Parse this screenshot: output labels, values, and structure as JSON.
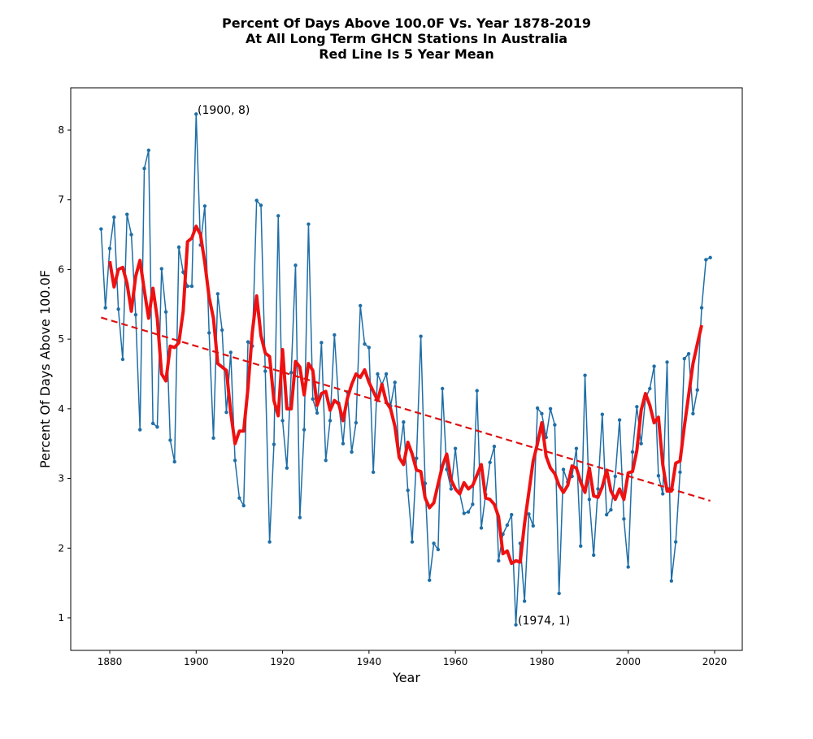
{
  "chart_data": {
    "type": "line",
    "title": [
      "Percent Of Days Above 100.0F Vs. Year 1878-2019",
      "At All Long Term GHCN Stations In Australia",
      "Red Line Is 5 Year Mean"
    ],
    "x_label": "Year",
    "y_label": "Percent Of Days Above 100.0F",
    "x": [
      1878,
      1879,
      1880,
      1881,
      1882,
      1883,
      1884,
      1885,
      1886,
      1887,
      1888,
      1889,
      1890,
      1891,
      1892,
      1893,
      1894,
      1895,
      1896,
      1897,
      1898,
      1899,
      1900,
      1901,
      1902,
      1903,
      1904,
      1905,
      1906,
      1907,
      1908,
      1909,
      1910,
      1911,
      1912,
      1913,
      1914,
      1915,
      1916,
      1917,
      1918,
      1919,
      1920,
      1921,
      1922,
      1923,
      1924,
      1925,
      1926,
      1927,
      1928,
      1929,
      1930,
      1931,
      1932,
      1933,
      1934,
      1935,
      1936,
      1937,
      1938,
      1939,
      1940,
      1941,
      1942,
      1943,
      1944,
      1945,
      1946,
      1947,
      1948,
      1949,
      1950,
      1951,
      1952,
      1953,
      1954,
      1955,
      1956,
      1957,
      1958,
      1959,
      1960,
      1961,
      1962,
      1963,
      1964,
      1965,
      1966,
      1967,
      1968,
      1969,
      1970,
      1971,
      1972,
      1973,
      1974,
      1975,
      1976,
      1977,
      1978,
      1979,
      1980,
      1981,
      1982,
      1983,
      1984,
      1985,
      1986,
      1987,
      1988,
      1989,
      1990,
      1991,
      1992,
      1993,
      1994,
      1995,
      1996,
      1997,
      1998,
      1999,
      2000,
      2001,
      2002,
      2003,
      2004,
      2005,
      2006,
      2007,
      2008,
      2009,
      2010,
      2011,
      2012,
      2013,
      2014,
      2015,
      2016,
      2017,
      2018,
      2019
    ],
    "series": [
      {
        "color": "#1f6ea6",
        "width": 1.5,
        "marker": true,
        "values": [
          6.58,
          5.45,
          6.3,
          6.75,
          5.43,
          4.71,
          6.79,
          6.5,
          5.35,
          3.7,
          7.45,
          7.71,
          3.79,
          3.74,
          6.01,
          5.39,
          3.55,
          3.24,
          6.32,
          5.96,
          5.76,
          5.76,
          8.23,
          6.35,
          6.91,
          5.09,
          3.58,
          5.65,
          5.13,
          3.95,
          4.81,
          3.26,
          2.72,
          2.61,
          4.96,
          4.9,
          6.99,
          6.92,
          4.54,
          2.09,
          3.49,
          6.77,
          3.83,
          3.15,
          4.52,
          6.06,
          2.44,
          3.7,
          6.65,
          4.14,
          3.94,
          4.95,
          3.26,
          3.83,
          5.06,
          4.08,
          3.5,
          4.24,
          3.38,
          3.8,
          5.48,
          4.93,
          4.88,
          3.09,
          4.5,
          4.35,
          4.5,
          4.04,
          4.38,
          3.32,
          3.81,
          2.83,
          2.09,
          3.29,
          5.04,
          2.93,
          1.54,
          2.07,
          1.98,
          4.29,
          3.13,
          2.85,
          3.43,
          2.79,
          2.5,
          2.52,
          2.63,
          4.26,
          2.29,
          2.77,
          3.23,
          3.46,
          1.82,
          2.2,
          2.33,
          2.48,
          0.9,
          2.07,
          1.24,
          2.49,
          2.32,
          4.01,
          3.93,
          3.59,
          4.0,
          3.77,
          1.35,
          3.13,
          2.95,
          3.03,
          3.43,
          2.03,
          4.48,
          2.7,
          1.9,
          2.85,
          3.92,
          2.48,
          2.55,
          3.03,
          3.84,
          2.42,
          1.73,
          3.38,
          4.03,
          3.5,
          4.15,
          4.29,
          4.61,
          3.04,
          2.78,
          4.67,
          1.53,
          2.09,
          3.09,
          4.72,
          4.79,
          3.93,
          4.27,
          5.45,
          6.14,
          6.17
        ]
      },
      {
        "color": "#ee1111",
        "width": 4,
        "marker": false,
        "values": [
          null,
          null,
          6.12,
          5.75,
          6.0,
          6.03,
          5.8,
          5.4,
          5.9,
          6.13,
          5.7,
          5.3,
          5.73,
          5.3,
          4.5,
          4.4,
          4.9,
          4.88,
          4.95,
          5.4,
          6.4,
          6.45,
          6.62,
          6.5,
          6.1,
          5.6,
          5.3,
          4.65,
          4.6,
          4.55,
          3.95,
          3.5,
          3.68,
          3.68,
          4.3,
          5.1,
          5.62,
          5.05,
          4.8,
          4.75,
          4.12,
          3.9,
          4.85,
          4.0,
          4.0,
          4.68,
          4.6,
          4.2,
          4.65,
          4.55,
          4.05,
          4.22,
          4.25,
          3.98,
          4.12,
          4.07,
          3.83,
          4.15,
          4.35,
          4.5,
          4.45,
          4.56,
          4.38,
          4.25,
          4.12,
          4.35,
          4.1,
          4.0,
          3.75,
          3.3,
          3.2,
          3.52,
          3.35,
          3.12,
          3.1,
          2.72,
          2.58,
          2.65,
          2.92,
          3.18,
          3.35,
          2.98,
          2.85,
          2.78,
          2.94,
          2.85,
          2.9,
          3.05,
          3.2,
          2.72,
          2.7,
          2.63,
          2.45,
          1.92,
          1.96,
          1.78,
          1.82,
          1.8,
          2.35,
          2.8,
          3.25,
          3.5,
          3.8,
          3.32,
          3.15,
          3.07,
          2.9,
          2.8,
          2.9,
          3.18,
          3.15,
          2.95,
          2.8,
          3.15,
          2.75,
          2.73,
          2.88,
          3.12,
          2.82,
          2.7,
          2.85,
          2.7,
          3.08,
          3.1,
          3.4,
          3.98,
          4.22,
          4.05,
          3.8,
          3.88,
          3.2,
          2.82,
          2.82,
          3.22,
          3.25,
          3.75,
          4.2,
          4.65,
          4.93,
          5.2,
          null,
          null
        ]
      },
      {
        "color": "#dd1111",
        "width": 2.2,
        "marker": false,
        "linestyle": "dashed",
        "x": [
          1878,
          2019
        ],
        "values": [
          5.31,
          2.68
        ]
      }
    ],
    "annotations": [
      "(1900, 8)",
      "(1974, 1)"
    ],
    "xlim": [
      1870.97,
      2026.4
    ],
    "ylim": [
      0.533,
      8.607
    ],
    "xticks": [
      1880,
      1900,
      1920,
      1940,
      1960,
      1980,
      2000,
      2020
    ],
    "yticks": [
      1,
      2,
      3,
      4,
      5,
      6,
      7,
      8
    ],
    "grid": false
  }
}
